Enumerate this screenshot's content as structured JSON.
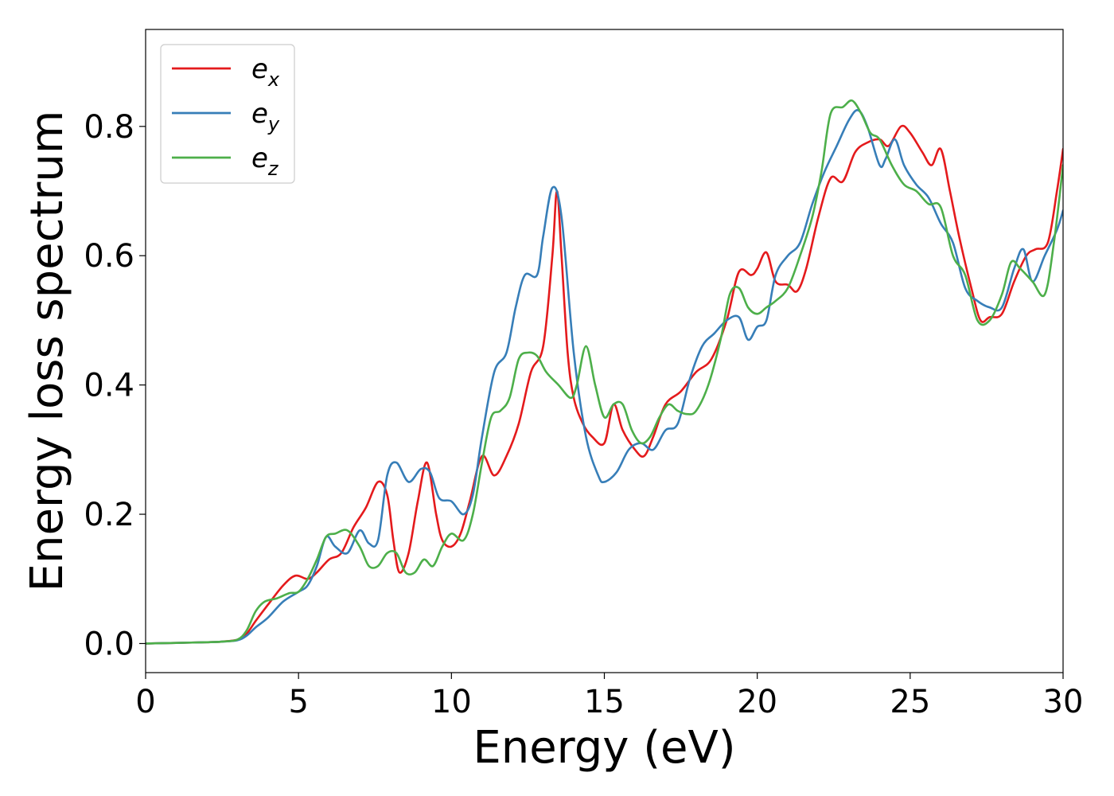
{
  "chart_data": {
    "type": "line",
    "title": "",
    "xlabel": "Energy (eV)",
    "ylabel": "Energy loss spectrum",
    "xlim": [
      0,
      30
    ],
    "ylim": [
      -0.045,
      0.95
    ],
    "xticks": [
      0,
      5,
      10,
      15,
      20,
      25,
      30
    ],
    "yticks": [
      0.0,
      0.2,
      0.4,
      0.6,
      0.8
    ],
    "xtick_labels": [
      "0",
      "5",
      "10",
      "15",
      "20",
      "25",
      "30"
    ],
    "ytick_labels": [
      "0.0",
      "0.2",
      "0.4",
      "0.6",
      "0.8"
    ],
    "grid": false,
    "legend": "top-left",
    "series": [
      {
        "name": "e_x",
        "label_main": "e",
        "label_sub": "x",
        "color": "#e41a1c",
        "x": [
          0,
          1,
          2,
          2.5,
          3.0,
          3.3,
          3.6,
          4.0,
          4.5,
          4.9,
          5.3,
          5.6,
          6.0,
          6.4,
          6.8,
          7.2,
          7.6,
          7.9,
          8.1,
          8.3,
          8.6,
          8.9,
          9.2,
          9.5,
          9.7,
          10.0,
          10.3,
          10.6,
          11.0,
          11.4,
          11.8,
          12.2,
          12.6,
          13.0,
          13.3,
          13.45,
          13.6,
          13.8,
          14.0,
          14.3,
          14.6,
          15.0,
          15.3,
          15.6,
          16.0,
          16.3,
          16.6,
          17.0,
          17.5,
          18.0,
          18.5,
          19.0,
          19.4,
          19.8,
          20.0,
          20.3,
          20.6,
          21.0,
          21.3,
          21.6,
          22.0,
          22.4,
          22.8,
          23.2,
          23.6,
          24.0,
          24.3,
          24.7,
          25.0,
          25.4,
          25.7,
          26.0,
          26.3,
          26.6,
          27.0,
          27.3,
          27.6,
          28.0,
          28.4,
          28.8,
          29.1,
          29.5,
          29.8,
          30.0
        ],
        "y": [
          0.0,
          0.001,
          0.002,
          0.003,
          0.006,
          0.015,
          0.035,
          0.06,
          0.09,
          0.105,
          0.1,
          0.11,
          0.13,
          0.14,
          0.18,
          0.21,
          0.25,
          0.23,
          0.16,
          0.11,
          0.14,
          0.22,
          0.28,
          0.2,
          0.16,
          0.15,
          0.17,
          0.22,
          0.29,
          0.26,
          0.29,
          0.34,
          0.42,
          0.46,
          0.6,
          0.7,
          0.6,
          0.45,
          0.38,
          0.34,
          0.32,
          0.31,
          0.37,
          0.33,
          0.3,
          0.29,
          0.32,
          0.37,
          0.39,
          0.42,
          0.44,
          0.5,
          0.575,
          0.57,
          0.58,
          0.605,
          0.56,
          0.555,
          0.545,
          0.58,
          0.66,
          0.72,
          0.715,
          0.76,
          0.775,
          0.78,
          0.77,
          0.8,
          0.79,
          0.76,
          0.74,
          0.765,
          0.7,
          0.63,
          0.55,
          0.5,
          0.505,
          0.51,
          0.56,
          0.6,
          0.61,
          0.62,
          0.7,
          0.765
        ]
      },
      {
        "name": "e_y",
        "label_main": "e",
        "label_sub": "y",
        "color": "#377eb8",
        "x": [
          0,
          1,
          2,
          2.5,
          3.0,
          3.3,
          3.6,
          4.0,
          4.5,
          5.0,
          5.3,
          5.6,
          5.9,
          6.2,
          6.6,
          7.0,
          7.3,
          7.6,
          7.9,
          8.2,
          8.6,
          9.0,
          9.3,
          9.6,
          10.0,
          10.4,
          10.7,
          11.0,
          11.4,
          11.8,
          12.1,
          12.4,
          12.8,
          13.0,
          13.3,
          13.6,
          14.0,
          14.4,
          14.8,
          15.0,
          15.4,
          15.8,
          16.2,
          16.6,
          17.0,
          17.4,
          17.8,
          18.2,
          18.6,
          19.0,
          19.4,
          19.7,
          20.0,
          20.3,
          20.6,
          21.0,
          21.4,
          21.8,
          22.2,
          22.6,
          23.0,
          23.3,
          23.6,
          24.0,
          24.2,
          24.5,
          24.8,
          25.2,
          25.6,
          26.0,
          26.4,
          26.8,
          27.2,
          27.6,
          28.0,
          28.4,
          28.7,
          29.0,
          29.4,
          29.8,
          30.0
        ],
        "y": [
          0.0,
          0.001,
          0.002,
          0.003,
          0.005,
          0.012,
          0.025,
          0.04,
          0.065,
          0.08,
          0.09,
          0.12,
          0.165,
          0.15,
          0.14,
          0.175,
          0.155,
          0.16,
          0.26,
          0.28,
          0.25,
          0.27,
          0.265,
          0.225,
          0.22,
          0.2,
          0.23,
          0.32,
          0.42,
          0.45,
          0.52,
          0.57,
          0.57,
          0.63,
          0.705,
          0.66,
          0.45,
          0.32,
          0.26,
          0.25,
          0.265,
          0.3,
          0.31,
          0.3,
          0.33,
          0.34,
          0.41,
          0.46,
          0.48,
          0.5,
          0.505,
          0.47,
          0.49,
          0.5,
          0.57,
          0.6,
          0.62,
          0.68,
          0.73,
          0.77,
          0.81,
          0.825,
          0.8,
          0.74,
          0.75,
          0.78,
          0.74,
          0.71,
          0.69,
          0.65,
          0.62,
          0.55,
          0.53,
          0.52,
          0.52,
          0.58,
          0.61,
          0.56,
          0.6,
          0.64,
          0.67
        ]
      },
      {
        "name": "e_z",
        "label_main": "e",
        "label_sub": "z",
        "color": "#4daf4a",
        "x": [
          0,
          1,
          2,
          2.5,
          3.0,
          3.3,
          3.6,
          3.9,
          4.3,
          4.7,
          5.0,
          5.3,
          5.6,
          5.9,
          6.2,
          6.6,
          7.0,
          7.3,
          7.6,
          7.9,
          8.2,
          8.5,
          8.8,
          9.1,
          9.4,
          9.7,
          10.0,
          10.4,
          10.7,
          11.0,
          11.3,
          11.6,
          11.9,
          12.2,
          12.5,
          12.8,
          13.1,
          13.5,
          13.9,
          14.1,
          14.4,
          14.7,
          15.0,
          15.3,
          15.6,
          15.9,
          16.2,
          16.5,
          16.8,
          17.1,
          17.4,
          17.7,
          18.0,
          18.4,
          18.8,
          19.1,
          19.4,
          19.7,
          20.0,
          20.3,
          20.6,
          21.0,
          21.4,
          21.8,
          22.1,
          22.4,
          22.8,
          23.1,
          23.4,
          23.7,
          24.0,
          24.4,
          24.8,
          25.2,
          25.6,
          26.0,
          26.4,
          26.8,
          27.2,
          27.6,
          28.0,
          28.3,
          28.6,
          29.0,
          29.4,
          29.7,
          30.0
        ],
        "y": [
          0.0,
          0.001,
          0.002,
          0.003,
          0.006,
          0.02,
          0.05,
          0.065,
          0.07,
          0.078,
          0.08,
          0.1,
          0.13,
          0.165,
          0.17,
          0.175,
          0.15,
          0.12,
          0.12,
          0.14,
          0.14,
          0.11,
          0.11,
          0.13,
          0.12,
          0.15,
          0.17,
          0.16,
          0.2,
          0.28,
          0.35,
          0.36,
          0.38,
          0.44,
          0.45,
          0.445,
          0.42,
          0.4,
          0.38,
          0.4,
          0.46,
          0.4,
          0.35,
          0.37,
          0.37,
          0.33,
          0.31,
          0.32,
          0.35,
          0.37,
          0.36,
          0.355,
          0.36,
          0.4,
          0.47,
          0.54,
          0.55,
          0.52,
          0.51,
          0.52,
          0.53,
          0.55,
          0.6,
          0.66,
          0.73,
          0.82,
          0.83,
          0.84,
          0.82,
          0.79,
          0.78,
          0.74,
          0.71,
          0.7,
          0.68,
          0.675,
          0.6,
          0.57,
          0.5,
          0.5,
          0.54,
          0.59,
          0.58,
          0.56,
          0.54,
          0.62,
          0.74
        ]
      }
    ]
  }
}
